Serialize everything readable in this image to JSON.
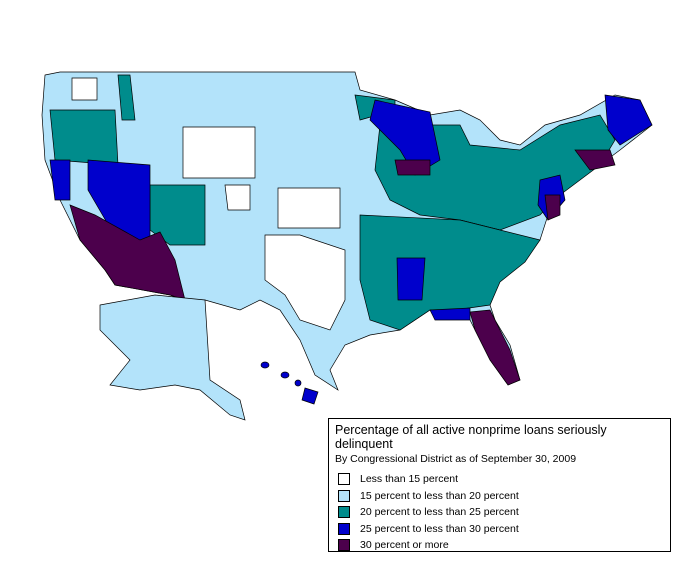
{
  "legend": {
    "title": "Percentage of all active nonprime loans seriously delinquent",
    "subtitle": "By Congressional District as of September 30, 2009",
    "items": [
      {
        "label": "Less than 15 percent",
        "color": "#ffffff"
      },
      {
        "label": "15 percent to less than 20 percent",
        "color": "#b3e3fa"
      },
      {
        "label": "20 percent to less than 25 percent",
        "color": "#008c8c"
      },
      {
        "label": "25 percent to less than 30 percent",
        "color": "#0000cc"
      },
      {
        "label": "30 percent or more",
        "color": "#4c004c"
      }
    ]
  }
}
